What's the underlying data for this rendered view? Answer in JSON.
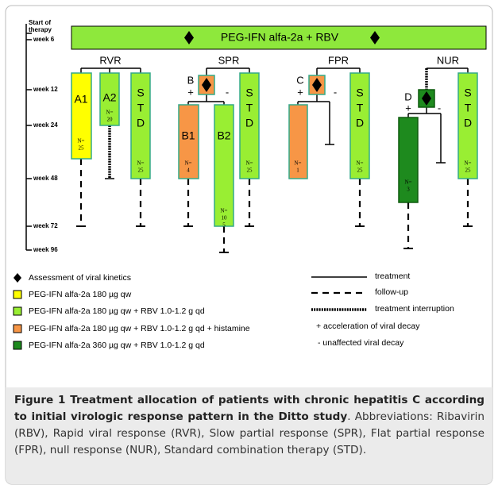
{
  "axis": {
    "start_label": [
      "Start of",
      "therapy"
    ],
    "weeks": [
      "week 6",
      "week 12",
      "week 24",
      "week 48",
      "week 72",
      "week 96"
    ]
  },
  "top_bar": "PEG-IFN alfa-2a + RBV",
  "groups": [
    "RVR",
    "SPR",
    "FPR",
    "NUR"
  ],
  "arms": {
    "A1": {
      "lines": [
        "A1"
      ],
      "n": [
        "N=",
        "25"
      ]
    },
    "A2": {
      "lines": [
        "A2"
      ],
      "n": [
        "N=",
        "20"
      ]
    },
    "RVR_STD": {
      "lines": [
        "S",
        "T",
        "D"
      ],
      "n": [
        "N=",
        "25"
      ]
    },
    "B1": {
      "lines": [
        "B1"
      ],
      "n": [
        "N=",
        "4"
      ]
    },
    "B2": {
      "lines": [
        "B2"
      ],
      "n": [
        "N=",
        "10",
        "5"
      ]
    },
    "SPR_STD": {
      "lines": [
        "S",
        "T",
        "D"
      ],
      "n": [
        "N=",
        "25"
      ]
    },
    "C1": {
      "n": [
        "N=",
        "1"
      ]
    },
    "FPR_STD": {
      "lines": [
        "S",
        "T",
        "D"
      ],
      "n": [
        "N=",
        "25"
      ]
    },
    "D1": {
      "n": [
        "N=",
        "3"
      ]
    },
    "NUR_STD": {
      "lines": [
        "S",
        "T",
        "D"
      ],
      "n": [
        "N=",
        "25"
      ]
    }
  },
  "decisions": {
    "B": {
      "label": "B",
      "plus": "+",
      "minus": "-"
    },
    "C": {
      "label": "C",
      "plus": "+",
      "minus": "-"
    },
    "D": {
      "label": "D",
      "plus": "+",
      "minus": "-"
    }
  },
  "legend": {
    "left": [
      "Assessment of viral kinetics",
      "PEG-IFN alfa-2a 180 µg qw",
      "PEG-IFN alfa-2a 180 µg qw + RBV 1.0-1.2 g qd",
      "PEG-IFN alfa-2a 180 µg qw + RBV 1.0-1.2 g qd + histamine",
      "PEG-IFN alfa-2a 360 µg qw + RBV 1.0-1.2 g qd"
    ],
    "right": [
      "treatment",
      "follow-up",
      "treatment interruption",
      "+ acceleration of viral decay",
      "- unaffected viral decay"
    ]
  },
  "caption": {
    "bold": "Figure 1 Treatment allocation of patients with chronic hepatitis C according to initial virologic response pattern in the Ditto study",
    "text": ". Abbreviations: Ribavirin (RBV), Rapid viral response (RVR), Slow partial response (SPR), Flat partial response (FPR), null response (NUR), Standard combination therapy (STD)."
  }
}
